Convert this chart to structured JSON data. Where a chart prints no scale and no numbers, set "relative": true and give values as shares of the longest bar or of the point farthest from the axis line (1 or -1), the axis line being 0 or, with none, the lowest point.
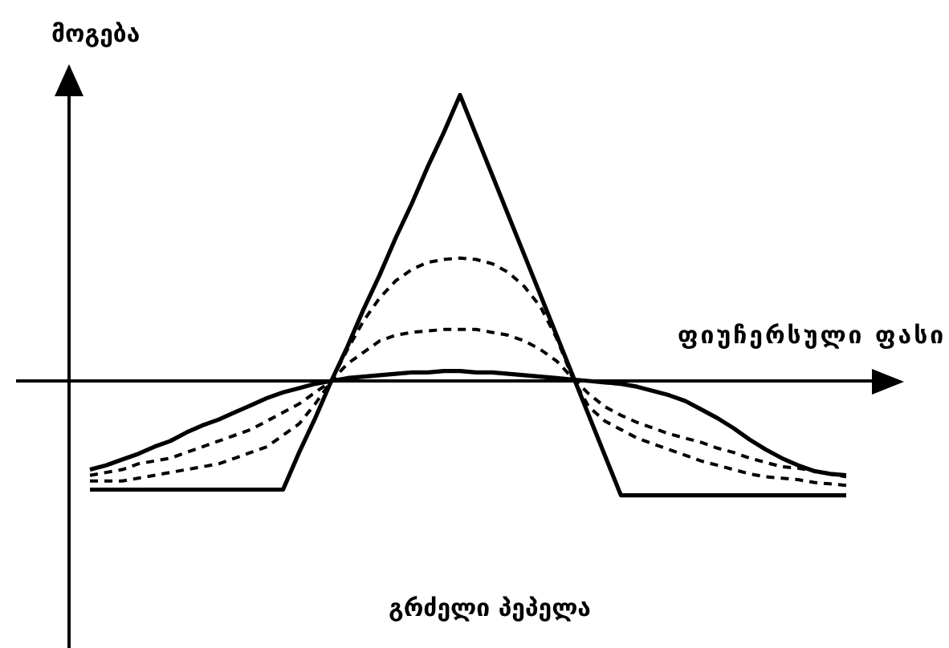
{
  "chart_data": {
    "type": "line",
    "title": "გრძელი პეპელა",
    "xlabel": "ფიუჩერსული ფასი",
    "ylabel": "მოგება",
    "relative": true,
    "marker": "none",
    "line_style": "solid",
    "categories": [
      null,
      null,
      null,
      null,
      null,
      null,
      null,
      null,
      null,
      null,
      null,
      null,
      null,
      null,
      null,
      null,
      null,
      null,
      null,
      null,
      null,
      null,
      null,
      null,
      null,
      null,
      null,
      null,
      null,
      null,
      null,
      null,
      null,
      null,
      null,
      null,
      null,
      null,
      null,
      null,
      null,
      null,
      null,
      null,
      null,
      null,
      null,
      null
    ],
    "series": [
      {
        "color": "#000000",
        "values": [
          -0.38,
          -0.38,
          -0.38,
          -0.38,
          -0.38,
          -0.38,
          -0.38,
          -0.38,
          -0.38,
          -0.38,
          -0.38,
          -0.38,
          -0.38,
          -0.25,
          -0.13,
          0,
          0.12,
          0.25,
          0.37,
          0.5,
          0.62,
          0.75,
          0.87,
          1,
          0.86,
          0.72,
          0.58,
          0.44,
          0.3,
          0.16,
          0.02,
          -0.12,
          -0.26,
          -0.4,
          -0.4,
          -0.4,
          -0.4,
          -0.4,
          -0.4,
          -0.4,
          -0.4,
          -0.4,
          -0.4,
          -0.4,
          -0.4,
          -0.4,
          -0.4,
          -0.4
        ]
      },
      {
        "color": "#000000",
        "values": [
          -0.31,
          -0.295,
          -0.275,
          -0.255,
          -0.23,
          -0.21,
          -0.18,
          -0.155,
          -0.135,
          -0.11,
          -0.085,
          -0.06,
          -0.04,
          -0.025,
          -0.01,
          0,
          0.01,
          0.015,
          0.02,
          0.025,
          0.03,
          0.03,
          0.035,
          0.035,
          0.03,
          0.03,
          0.025,
          0.02,
          0.015,
          0.01,
          0.005,
          0,
          -0.005,
          -0.01,
          -0.02,
          -0.035,
          -0.05,
          -0.07,
          -0.1,
          -0.13,
          -0.165,
          -0.205,
          -0.24,
          -0.27,
          -0.295,
          -0.315,
          -0.325,
          -0.33
        ]
      },
      {
        "color": "#000000",
        "line_style": "dashed",
        "values": [
          -0.33,
          -0.32,
          -0.31,
          -0.29,
          -0.28,
          -0.27,
          -0.25,
          -0.23,
          -0.21,
          -0.19,
          -0.17,
          -0.14,
          -0.11,
          -0.08,
          -0.04,
          0,
          0.06,
          0.1,
          0.14,
          0.16,
          0.17,
          0.175,
          0.18,
          0.18,
          0.18,
          0.17,
          0.16,
          0.14,
          0.11,
          0.07,
          0.01,
          -0.045,
          -0.09,
          -0.12,
          -0.145,
          -0.165,
          -0.185,
          -0.2,
          -0.215,
          -0.235,
          -0.25,
          -0.27,
          -0.285,
          -0.3,
          -0.305,
          -0.315,
          -0.325,
          -0.335
        ]
      },
      {
        "color": "#000000",
        "line_style": "dashed",
        "values": [
          -0.35,
          -0.35,
          -0.35,
          -0.34,
          -0.33,
          -0.32,
          -0.31,
          -0.3,
          -0.29,
          -0.27,
          -0.25,
          -0.23,
          -0.19,
          -0.15,
          -0.08,
          0,
          0.11,
          0.21,
          0.29,
          0.35,
          0.39,
          0.415,
          0.425,
          0.43,
          0.425,
          0.41,
          0.38,
          0.33,
          0.26,
          0.15,
          0.01,
          -0.09,
          -0.14,
          -0.17,
          -0.2,
          -0.22,
          -0.24,
          -0.26,
          -0.28,
          -0.295,
          -0.31,
          -0.325,
          -0.335,
          -0.34,
          -0.345,
          -0.355,
          -0.36,
          -0.365
        ]
      }
    ]
  }
}
